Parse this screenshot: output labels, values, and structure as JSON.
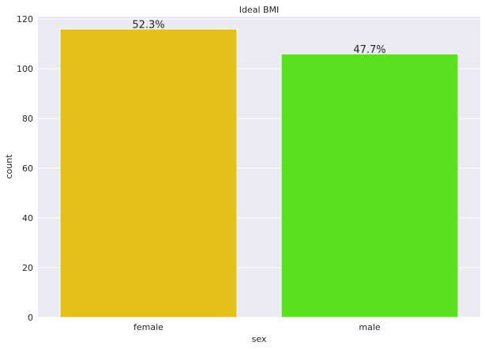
{
  "chart_data": {
    "type": "bar",
    "title": "Ideal BMI",
    "xlabel": "sex",
    "ylabel": "count",
    "categories": [
      "female",
      "male"
    ],
    "values": [
      116,
      106
    ],
    "data_labels": [
      "52.3%",
      "47.7%"
    ],
    "colors": [
      "#e3c01a",
      "#5be01f"
    ],
    "ylim": [
      0,
      121
    ],
    "yticks": [
      0,
      20,
      40,
      60,
      80,
      100,
      120
    ],
    "grid": true,
    "plot_background": "#eaeaf2",
    "grid_color": "#ffffff"
  }
}
